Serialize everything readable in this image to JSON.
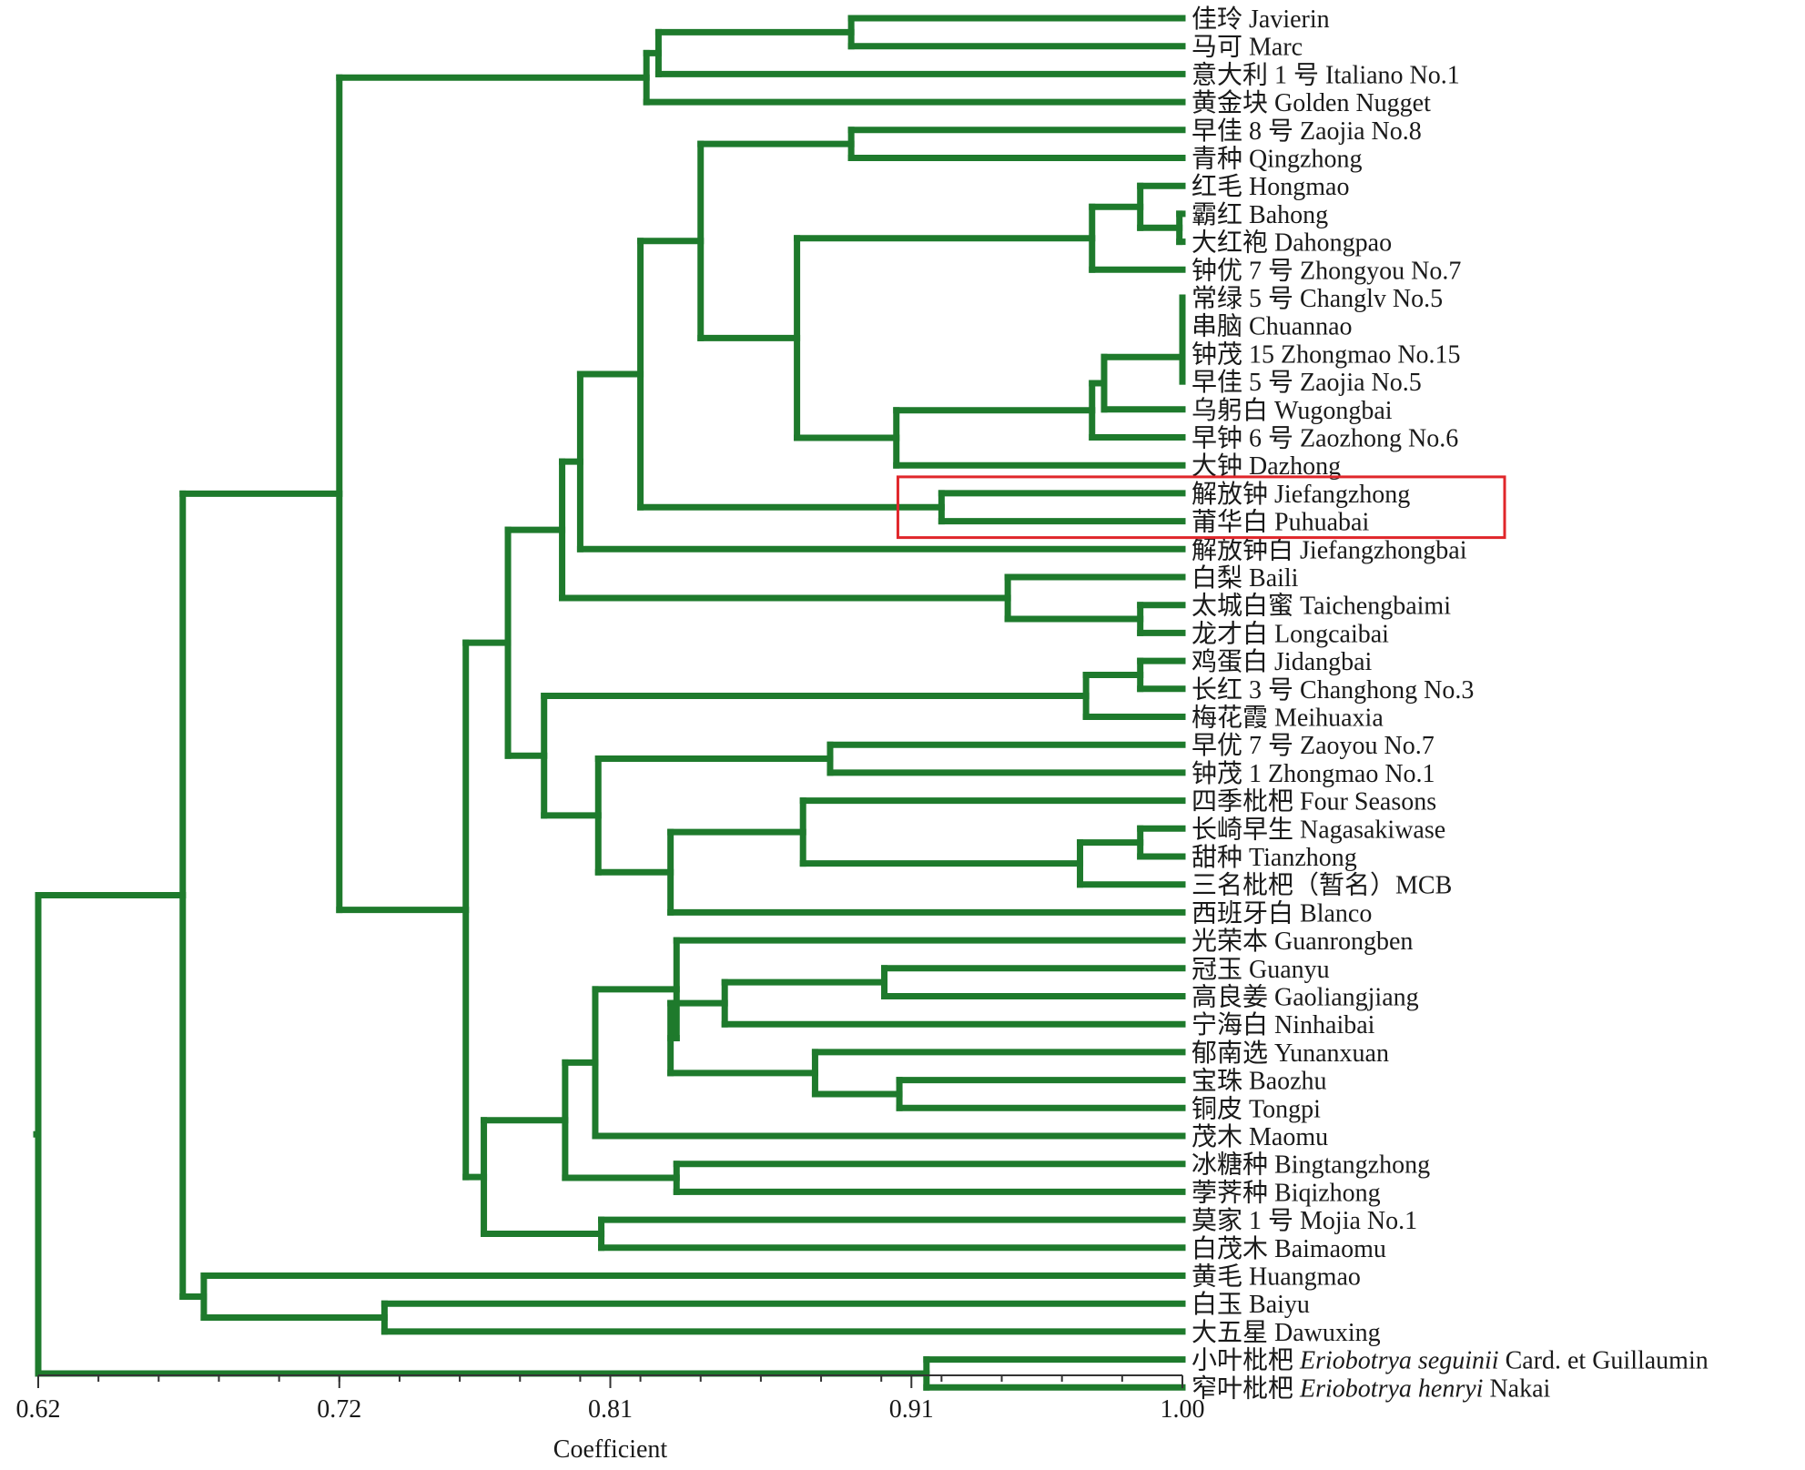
{
  "colors": {
    "branch": "#1e7a2c",
    "highlight": "#e0262a",
    "axis": "#333333",
    "text": "#1a1a1a"
  },
  "axis": {
    "title": "Coefficient",
    "min": 0.62,
    "max": 1.0,
    "ticks": [
      0.62,
      0.72,
      0.81,
      0.91,
      1.0
    ],
    "tick_labels": [
      "0.62",
      "0.72",
      "0.81",
      "0.91",
      "1.00"
    ]
  },
  "chart_data": {
    "type": "dendrogram",
    "xlabel": "Coefficient",
    "xlim": [
      0.62,
      1.0
    ],
    "highlighted_leaves": [
      "解放钟 Jiefangzhong",
      "莆华白 Puhuabai"
    ],
    "leaves": [
      {
        "zh": "佳玲",
        "en": "Javierin"
      },
      {
        "zh": "马可",
        "en": "Marc"
      },
      {
        "zh": "意大利 1 号",
        "en": "Italiano No.1"
      },
      {
        "zh": "黄金块",
        "en": "Golden Nugget"
      },
      {
        "zh": "早佳 8 号",
        "en": "Zaojia No.8"
      },
      {
        "zh": "青种",
        "en": "Qingzhong"
      },
      {
        "zh": "红毛",
        "en": "Hongmao"
      },
      {
        "zh": "霸红",
        "en": "Bahong"
      },
      {
        "zh": "大红袍",
        "en": "Dahongpao"
      },
      {
        "zh": "钟优 7 号",
        "en": "Zhongyou No.7"
      },
      {
        "zh": "常绿 5 号",
        "en": "Changlv No.5"
      },
      {
        "zh": "串脑",
        "en": "Chuannao"
      },
      {
        "zh": "钟茂 15",
        "en": "Zhongmao No.15"
      },
      {
        "zh": "早佳 5 号",
        "en": "Zaojia No.5"
      },
      {
        "zh": "乌躬白",
        "en": "Wugongbai"
      },
      {
        "zh": "早钟 6 号",
        "en": "Zaozhong No.6"
      },
      {
        "zh": "大钟",
        "en": "Dazhong"
      },
      {
        "zh": "解放钟",
        "en": "Jiefangzhong"
      },
      {
        "zh": "莆华白",
        "en": "Puhuabai"
      },
      {
        "zh": "解放钟白",
        "en": "Jiefangzhongbai"
      },
      {
        "zh": "白梨",
        "en": "Baili"
      },
      {
        "zh": "太城白蜜",
        "en": "Taichengbaimi"
      },
      {
        "zh": "龙才白",
        "en": "Longcaibai"
      },
      {
        "zh": "鸡蛋白",
        "en": "Jidangbai"
      },
      {
        "zh": "长红 3 号",
        "en": "Changhong No.3"
      },
      {
        "zh": "梅花霞",
        "en": "Meihuaxia"
      },
      {
        "zh": "早优 7 号",
        "en": "Zaoyou No.7"
      },
      {
        "zh": "钟茂 1",
        "en": "Zhongmao No.1"
      },
      {
        "zh": "四季枇杷",
        "en": "Four Seasons"
      },
      {
        "zh": "长崎早生",
        "en": "Nagasakiwase"
      },
      {
        "zh": "甜种",
        "en": "Tianzhong"
      },
      {
        "zh": "三名枇杷（暂名）MCB",
        "en": ""
      },
      {
        "zh": "西班牙白",
        "en": "Blanco"
      },
      {
        "zh": "光荣本",
        "en": "Guanrongben"
      },
      {
        "zh": "冠玉",
        "en": "Guanyu"
      },
      {
        "zh": "高良姜",
        "en": "Gaoliangjiang"
      },
      {
        "zh": "宁海白",
        "en": "Ninhaibai"
      },
      {
        "zh": "郁南选",
        "en": "Yunanxuan"
      },
      {
        "zh": "宝珠",
        "en": "Baozhu"
      },
      {
        "zh": "铜皮",
        "en": "Tongpi"
      },
      {
        "zh": "茂木",
        "en": "Maomu"
      },
      {
        "zh": "冰糖种",
        "en": "Bingtangzhong"
      },
      {
        "zh": "荸荠种",
        "en": "Biqizhong"
      },
      {
        "zh": "莫家 1 号",
        "en": "Mojia No.1"
      },
      {
        "zh": "白茂木",
        "en": "Baimaomu"
      },
      {
        "zh": "黄毛",
        "en": "Huangmao"
      },
      {
        "zh": "白玉",
        "en": "Baiyu"
      },
      {
        "zh": "大五星",
        "en": "Dawuxing"
      },
      {
        "zh": "小叶枇杷",
        "en": "",
        "sci": "Eriobotrya seguinii",
        "auth": "Card. et Guillaumin"
      },
      {
        "zh": "窄叶枇杷",
        "en": "",
        "sci": "Eriobotrya henryi",
        "auth": "Nakai"
      }
    ],
    "merges": [
      {
        "c": 0.89,
        "a": "L0",
        "b": "L1"
      },
      {
        "c": 0.826,
        "a": "M0",
        "b": "L2"
      },
      {
        "c": 0.822,
        "a": "M1",
        "b": "L3"
      },
      {
        "c": 0.89,
        "a": "L4",
        "b": "L5"
      },
      {
        "c": 0.999,
        "a": "L7",
        "b": "L8"
      },
      {
        "c": 0.986,
        "a": "L6",
        "b": "M4"
      },
      {
        "c": 0.97,
        "a": "M5",
        "b": "L9"
      },
      {
        "c": 1.0,
        "a": "L10",
        "b": "L11"
      },
      {
        "c": 1.0,
        "a": "M7",
        "b": "L12"
      },
      {
        "c": 1.0,
        "a": "M8",
        "b": "L13"
      },
      {
        "c": 0.974,
        "a": "M9",
        "b": "L14"
      },
      {
        "c": 0.97,
        "a": "M10",
        "b": "L15"
      },
      {
        "c": 0.905,
        "a": "M11",
        "b": "L16"
      },
      {
        "c": 0.872,
        "a": "M6",
        "b": "M12"
      },
      {
        "c": 0.84,
        "a": "M3",
        "b": "M13"
      },
      {
        "c": 0.92,
        "a": "L17",
        "b": "L18"
      },
      {
        "c": 0.82,
        "a": "M14",
        "b": "M15"
      },
      {
        "c": 0.8,
        "a": "M16",
        "b": "L19"
      },
      {
        "c": 0.986,
        "a": "L21",
        "b": "L22"
      },
      {
        "c": 0.942,
        "a": "L20",
        "b": "M18"
      },
      {
        "c": 0.794,
        "a": "M17",
        "b": "M19"
      },
      {
        "c": 0.986,
        "a": "L23",
        "b": "L24"
      },
      {
        "c": 0.968,
        "a": "M21",
        "b": "L25"
      },
      {
        "c": 0.883,
        "a": "L26",
        "b": "L27"
      },
      {
        "c": 0.986,
        "a": "L29",
        "b": "L30"
      },
      {
        "c": 0.966,
        "a": "M24",
        "b": "L31"
      },
      {
        "c": 0.874,
        "a": "L28",
        "b": "M25"
      },
      {
        "c": 0.83,
        "a": "M26",
        "b": "L32"
      },
      {
        "c": 0.806,
        "a": "M23",
        "b": "M27"
      },
      {
        "c": 0.788,
        "a": "M22",
        "b": "M28"
      },
      {
        "c": 0.776,
        "a": "M20",
        "b": "M29"
      },
      {
        "c": 0.901,
        "a": "L34",
        "b": "L35"
      },
      {
        "c": 0.848,
        "a": "M31",
        "b": "L36"
      },
      {
        "c": 0.906,
        "a": "L38",
        "b": "L39"
      },
      {
        "c": 0.878,
        "a": "L37",
        "b": "M33"
      },
      {
        "c": 0.83,
        "a": "M32",
        "b": "M34"
      },
      {
        "c": 0.832,
        "a": "L33",
        "b": "M35"
      },
      {
        "c": 0.805,
        "a": "M36",
        "b": "L40"
      },
      {
        "c": 0.832,
        "a": "L41",
        "b": "L42"
      },
      {
        "c": 0.795,
        "a": "M37",
        "b": "M38"
      },
      {
        "c": 0.807,
        "a": "L43",
        "b": "L44"
      },
      {
        "c": 0.768,
        "a": "M39",
        "b": "M40"
      },
      {
        "c": 0.762,
        "a": "M30",
        "b": "M41"
      },
      {
        "c": 0.72,
        "a": "M2",
        "b": "M42"
      },
      {
        "c": 0.735,
        "a": "L46",
        "b": "L47"
      },
      {
        "c": 0.675,
        "a": "L45",
        "b": "M44"
      },
      {
        "c": 0.668,
        "a": "M43",
        "b": "M45"
      },
      {
        "c": 0.915,
        "a": "L48",
        "b": "L49"
      },
      {
        "c": 0.62,
        "a": "M46",
        "b": "M47"
      }
    ]
  }
}
